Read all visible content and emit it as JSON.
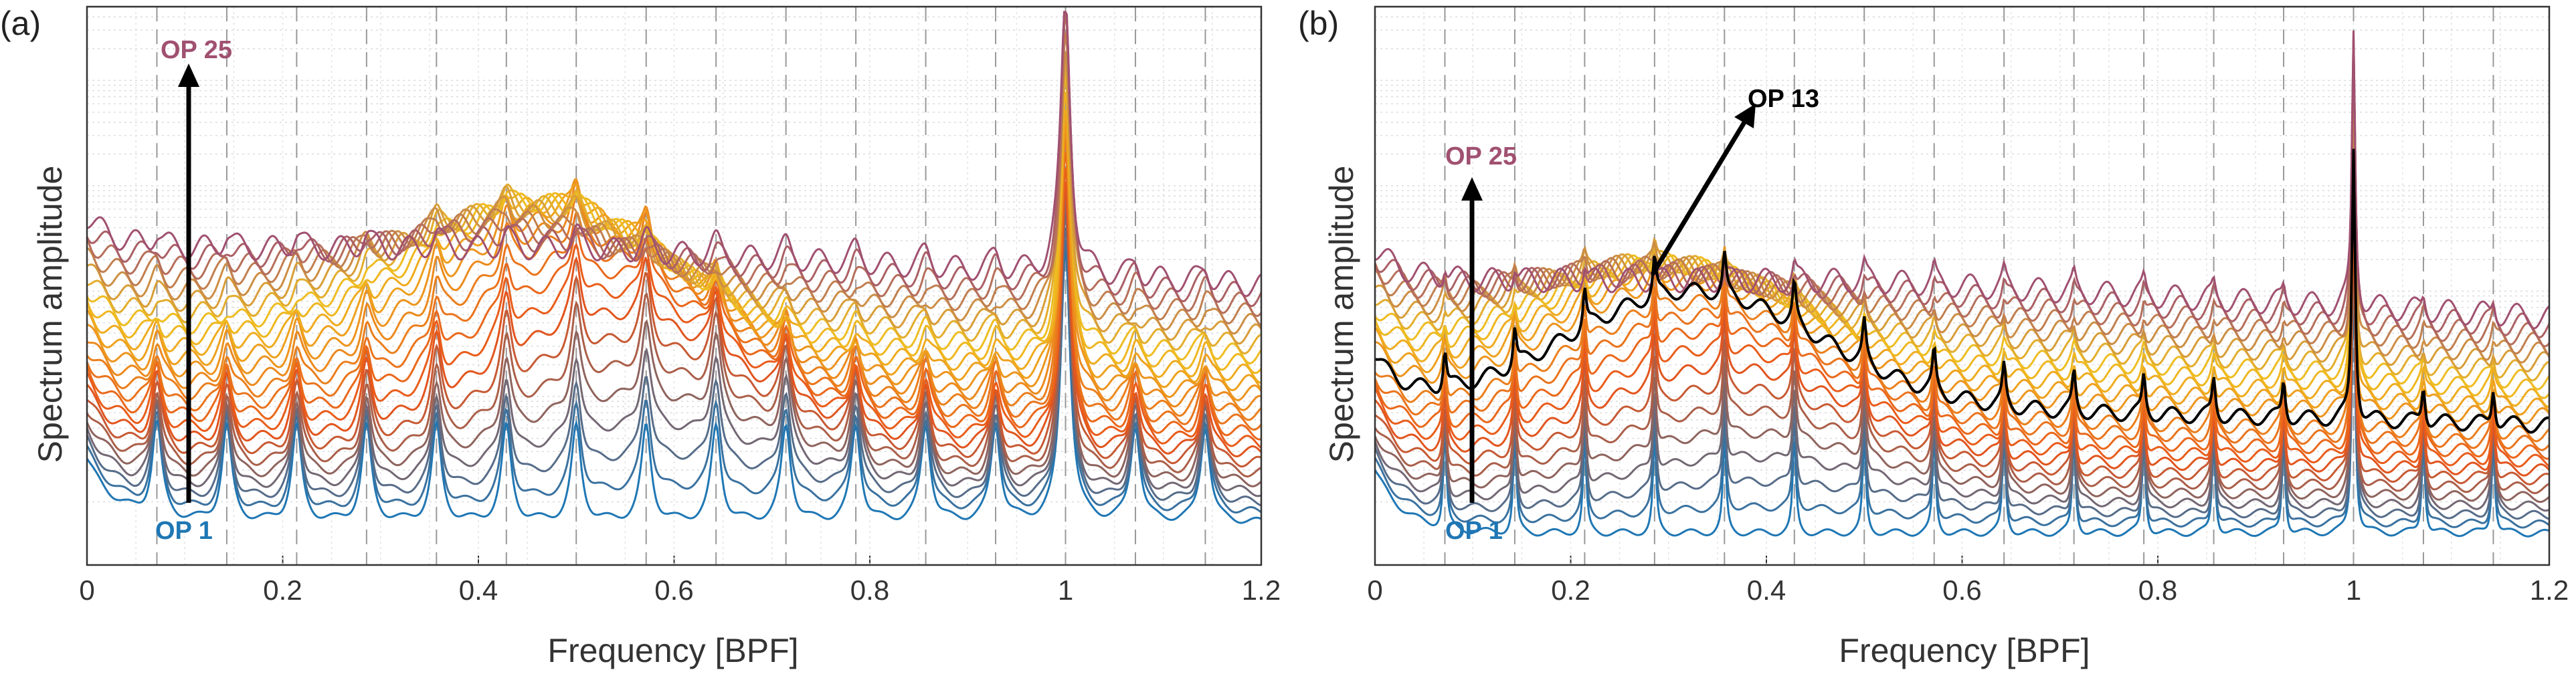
{
  "chart_data": [
    {
      "type": "line",
      "panel_label": "(a)",
      "xlabel": "Frequency [BPF]",
      "ylabel": "Spectrum amplitude",
      "xlim": [
        0,
        1.2
      ],
      "x_ticks": [
        0,
        0.2,
        0.4,
        0.6,
        0.8,
        1,
        1.2
      ],
      "x_tick_labels": [
        "0",
        "0.2",
        "0.4",
        "0.6",
        "0.8",
        "1",
        "1.2"
      ],
      "y_scale": "log",
      "y_tick_labels_shown": false,
      "grid": "dotted, with dashed vertical lines at multiples of 1/14 BPF",
      "series_count": 25,
      "series_color_start": "#1f77b4",
      "series_color_mid": "#e8541a",
      "series_color_peak": "#f0c020",
      "series_color_end": "#a05070",
      "annotations": [
        {
          "text": "OP 25",
          "color": "#a05070"
        },
        {
          "text": "OP 1",
          "color": "#1f77b4"
        }
      ]
    },
    {
      "type": "line",
      "panel_label": "(b)",
      "xlabel": "Frequency [BPF]",
      "ylabel": "Spectrum amplitude",
      "xlim": [
        0,
        1.2
      ],
      "x_ticks": [
        0,
        0.2,
        0.4,
        0.6,
        0.8,
        1,
        1.2
      ],
      "x_tick_labels": [
        "0",
        "0.2",
        "0.4",
        "0.6",
        "0.8",
        "1",
        "1.2"
      ],
      "y_scale": "log",
      "y_tick_labels_shown": false,
      "grid": "dotted, with dashed vertical lines at multiples of 1/14 BPF",
      "series_count": 25,
      "highlighted_series": {
        "index": 13,
        "color": "#000000"
      },
      "series_color_start": "#1f77b4",
      "series_color_mid": "#e8541a",
      "series_color_peak": "#f0c020",
      "series_color_end": "#a05070",
      "annotations": [
        {
          "text": "OP 25",
          "color": "#a05070"
        },
        {
          "text": "OP 13",
          "color": "#000000"
        },
        {
          "text": "OP 1",
          "color": "#1f77b4"
        }
      ]
    }
  ]
}
